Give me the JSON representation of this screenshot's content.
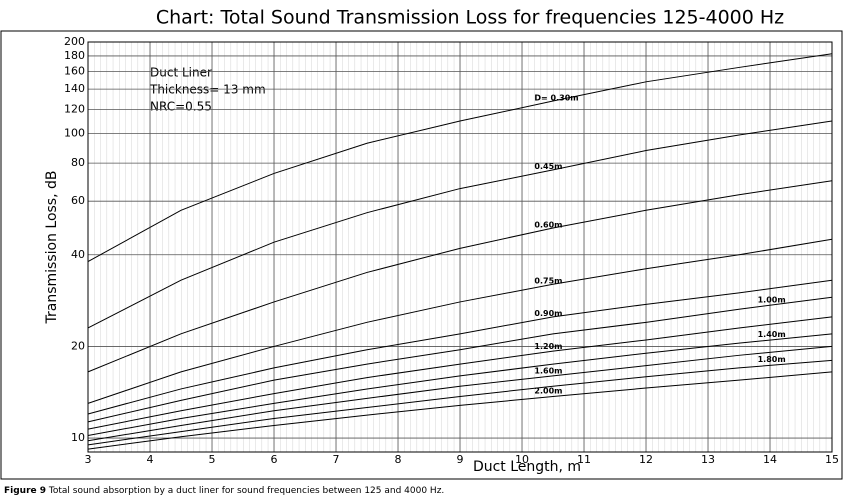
{
  "chart_data": {
    "type": "line",
    "title": "Chart: Total Sound Transmission Loss for frequencies 125-4000 Hz",
    "x_label": "Duct Length, m",
    "y_label": "Transmission Loss, dB",
    "annotation": [
      "Duct Liner",
      "Thickness= 13 mm",
      "NRC=0.55"
    ],
    "caption": {
      "label": "Figure 9",
      "text": "Total sound absorption by a duct liner for sound frequencies between 125 and 4000 Hz."
    },
    "x": [
      3,
      4.5,
      6,
      7.5,
      9,
      10.5,
      12,
      13.5,
      15
    ],
    "series": [
      {
        "name": "D= 0.30m",
        "color": "#000000",
        "values": [
          38,
          56,
          74,
          93,
          110,
          128,
          148,
          165,
          183
        ]
      },
      {
        "name": "0.45m",
        "color": "#000000",
        "values": [
          23,
          33,
          44,
          55,
          66,
          76,
          88,
          99,
          110
        ]
      },
      {
        "name": "0.60m",
        "color": "#000000",
        "values": [
          16.5,
          22,
          28,
          35,
          42,
          49,
          56,
          63,
          70
        ]
      },
      {
        "name": "0.75m",
        "color": "#000000",
        "values": [
          13,
          16.5,
          20,
          24,
          28,
          32,
          36,
          40,
          45
        ]
      },
      {
        "name": "0.90m",
        "color": "#000000",
        "values": [
          12,
          14.5,
          17,
          19.5,
          22,
          25,
          27.5,
          30,
          33
        ]
      },
      {
        "name": "1.00m",
        "color": "#000000",
        "values": [
          11.3,
          13.3,
          15.5,
          17.5,
          19.5,
          22,
          24,
          26.5,
          29
        ]
      },
      {
        "name": "1.20m",
        "color": "#000000",
        "values": [
          10.7,
          12.3,
          14,
          15.8,
          17.5,
          19.3,
          21,
          23,
          25
        ]
      },
      {
        "name": "1.40m",
        "color": "#000000",
        "values": [
          10.2,
          11.6,
          13,
          14.5,
          16,
          17.5,
          19,
          20.5,
          22
        ]
      },
      {
        "name": "1.60m",
        "color": "#000000",
        "values": [
          9.8,
          11,
          12.3,
          13.5,
          14.8,
          16,
          17.3,
          18.7,
          20
        ]
      },
      {
        "name": "1.80m",
        "color": "#000000",
        "values": [
          9.5,
          10.5,
          11.6,
          12.6,
          13.7,
          14.8,
          15.9,
          17,
          18
        ]
      },
      {
        "name": "2.00m",
        "color": "#000000",
        "values": [
          9.2,
          10.1,
          11,
          11.9,
          12.8,
          13.7,
          14.6,
          15.5,
          16.5
        ]
      }
    ],
    "xlim": [
      3,
      15
    ],
    "xticks": [
      3,
      4,
      5,
      6,
      7,
      8,
      9,
      10,
      11,
      12,
      13,
      14,
      15
    ],
    "ylim": [
      9,
      200
    ],
    "yticks": [
      10,
      20,
      40,
      60,
      80,
      100,
      120,
      140,
      160,
      180,
      200
    ],
    "log_y": true,
    "grid": true
  }
}
